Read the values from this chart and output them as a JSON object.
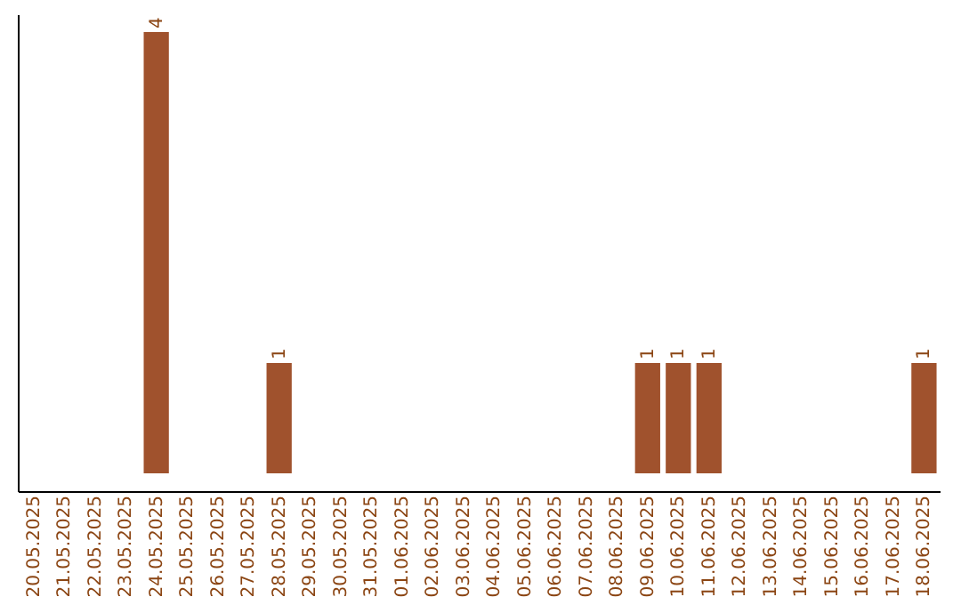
{
  "chart_data": {
    "type": "bar",
    "categories": [
      "20.05.2025",
      "21.05.2025",
      "22.05.2025",
      "23.05.2025",
      "24.05.2025",
      "25.05.2025",
      "26.05.2025",
      "27.05.2025",
      "28.05.2025",
      "29.05.2025",
      "30.05.2025",
      "31.05.2025",
      "01.06.2025",
      "02.06.2025",
      "03.06.2025",
      "04.06.2025",
      "05.06.2025",
      "06.06.2025",
      "07.06.2025",
      "08.06.2025",
      "09.06.2025",
      "10.06.2025",
      "11.06.2025",
      "12.06.2025",
      "13.06.2025",
      "14.06.2025",
      "15.06.2025",
      "16.06.2025",
      "17.06.2025",
      "18.06.2025"
    ],
    "values": [
      0,
      0,
      0,
      0,
      4,
      0,
      0,
      0,
      1,
      0,
      0,
      0,
      0,
      0,
      0,
      0,
      0,
      0,
      0,
      0,
      1,
      1,
      1,
      0,
      0,
      0,
      0,
      0,
      0,
      1
    ],
    "value_labels": [
      null,
      null,
      null,
      null,
      "4",
      null,
      null,
      null,
      "1",
      null,
      null,
      null,
      null,
      null,
      null,
      null,
      null,
      null,
      null,
      null,
      "1",
      "1",
      "1",
      null,
      null,
      null,
      null,
      null,
      null,
      "1"
    ],
    "color": "#a0522d",
    "tick_labels": "x",
    "grid": false
  }
}
